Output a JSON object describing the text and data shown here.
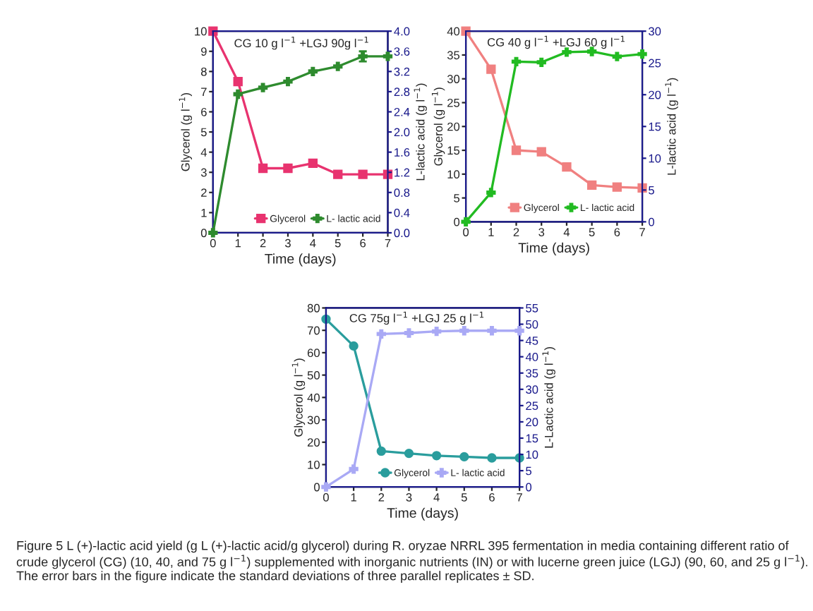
{
  "chart_data": [
    {
      "type": "line",
      "title": "CG 10 g l$^{−1}$ +LGJ 90g l$^{−1}$",
      "xlabel": "Time (days)",
      "ylabel": "Glycerol (g l$^{−1}$)",
      "y2label": "L-lactic acid (g l$^{−1}$)",
      "x": [
        0,
        1,
        2,
        3,
        4,
        5,
        6,
        7
      ],
      "xlim": [
        0,
        7
      ],
      "xticks": [
        0,
        1,
        2,
        3,
        4,
        5,
        6,
        7
      ],
      "ylim": [
        0,
        10
      ],
      "yticks": [
        0,
        1,
        2,
        3,
        4,
        5,
        6,
        7,
        8,
        9,
        10
      ],
      "y2lim": [
        0,
        4
      ],
      "y2ticks": [
        {
          "value": 0,
          "label": "0.0"
        },
        {
          "value": 0.4,
          "label": "0.4"
        },
        {
          "value": 0.8,
          "label": "0.8"
        },
        {
          "value": 1.2,
          "label": "1.2"
        },
        {
          "value": 1.6,
          "label": "1.6"
        },
        {
          "value": 2.0,
          "label": "2.0"
        },
        {
          "value": 2.4,
          "label": "2.4"
        },
        {
          "value": 2.8,
          "label": "2.8"
        },
        {
          "value": 3.2,
          "label": "3.2"
        },
        {
          "value": 3.6,
          "label": "3.6"
        },
        {
          "value": 4.0,
          "label": "4.0"
        }
      ],
      "series": [
        {
          "name": "Glycerol",
          "color": "#e8336f",
          "marker": "square",
          "values": [
            10,
            7.5,
            3.2,
            3.2,
            3.45,
            2.9,
            2.9,
            2.9
          ]
        },
        {
          "name": "L- lactic acid",
          "color": "#2e8b2e",
          "marker": "cross",
          "axis": "y2",
          "values": [
            0,
            2.75,
            2.88,
            3.0,
            3.2,
            3.3,
            3.5,
            3.5
          ],
          "errors": [
            null,
            null,
            null,
            null,
            null,
            null,
            0.1,
            null
          ]
        }
      ],
      "legend": "bottom",
      "grid": false
    },
    {
      "type": "line",
      "title": "CG 40 g l$^{−1}$ +LGJ 60 g l$^{−1}$",
      "xlabel": "Time (days)",
      "ylabel": "Glycerol (g l$^{−1}$)",
      "y2label": "L-lactic acid (g l$^{−1}$)",
      "x": [
        0,
        1,
        2,
        3,
        4,
        5,
        6,
        7
      ],
      "xlim": [
        0,
        7
      ],
      "xticks": [
        0,
        1,
        2,
        3,
        4,
        5,
        6,
        7
      ],
      "ylim": [
        0,
        40
      ],
      "yticks": [
        0,
        5,
        10,
        15,
        20,
        25,
        30,
        35,
        40
      ],
      "y2lim": [
        0,
        30
      ],
      "y2ticks": [
        0,
        5,
        10,
        15,
        20,
        25,
        30
      ],
      "series": [
        {
          "name": "Glycerol",
          "color": "#f08080",
          "marker": "square",
          "values": [
            40,
            32,
            15,
            14.7,
            11.5,
            7.7,
            7.3,
            7.1
          ]
        },
        {
          "name": "L- lactic acid",
          "color": "#22bb22",
          "marker": "cross",
          "axis": "y2",
          "values": [
            0,
            4.6,
            25.2,
            25.1,
            26.7,
            26.8,
            26.0,
            26.4
          ]
        }
      ],
      "legend": "bottom",
      "grid": false
    },
    {
      "type": "line",
      "title": "CG 75g l$^{−1}$ +LGJ 25 g l$^{−1}$",
      "xlabel": "Time (days)",
      "ylabel": "Glycerol (g l$^{−1}$)",
      "y2label": "L-Lactic acid (g l$^{−1}$)",
      "x": [
        0,
        1,
        2,
        3,
        4,
        5,
        6,
        7
      ],
      "xlim": [
        0,
        7
      ],
      "xticks": [
        0,
        1,
        2,
        3,
        4,
        5,
        6,
        7
      ],
      "ylim": [
        0,
        80
      ],
      "yticks": [
        0,
        10,
        20,
        30,
        40,
        50,
        60,
        70,
        80
      ],
      "y2lim": [
        0,
        55
      ],
      "y2ticks": [
        0,
        5,
        10,
        15,
        20,
        25,
        30,
        35,
        40,
        45,
        50,
        55
      ],
      "series": [
        {
          "name": "Glycerol",
          "color": "#2a9d9d",
          "marker": "circle",
          "values": [
            75,
            63,
            16,
            15,
            14,
            13.5,
            13,
            13
          ]
        },
        {
          "name": "L- lactic acid",
          "color": "#a9a9f5",
          "marker": "cross",
          "axis": "y2",
          "values": [
            0,
            5.5,
            47,
            47.3,
            47.8,
            48,
            48,
            48
          ]
        }
      ],
      "legend": "bottom",
      "grid": false,
      "annotations": [
        "Figure 5 L (+)-lactic acid yield (g L (+)-lactic acid/g glycerol) during R. oryzae NRRL 395 fermentation in media containing different ratio of crude glycerol (CG) (10, 40, and 75 g l$^{−1}$) supplemented with inorganic nutrients (IN) or with lucerne green juice (LGJ) (90, 60, and 25 g l$^{−1}$). The error bars in the figure indicate the standard deviations of three parallel replicates ± SD."
      ]
    }
  ]
}
